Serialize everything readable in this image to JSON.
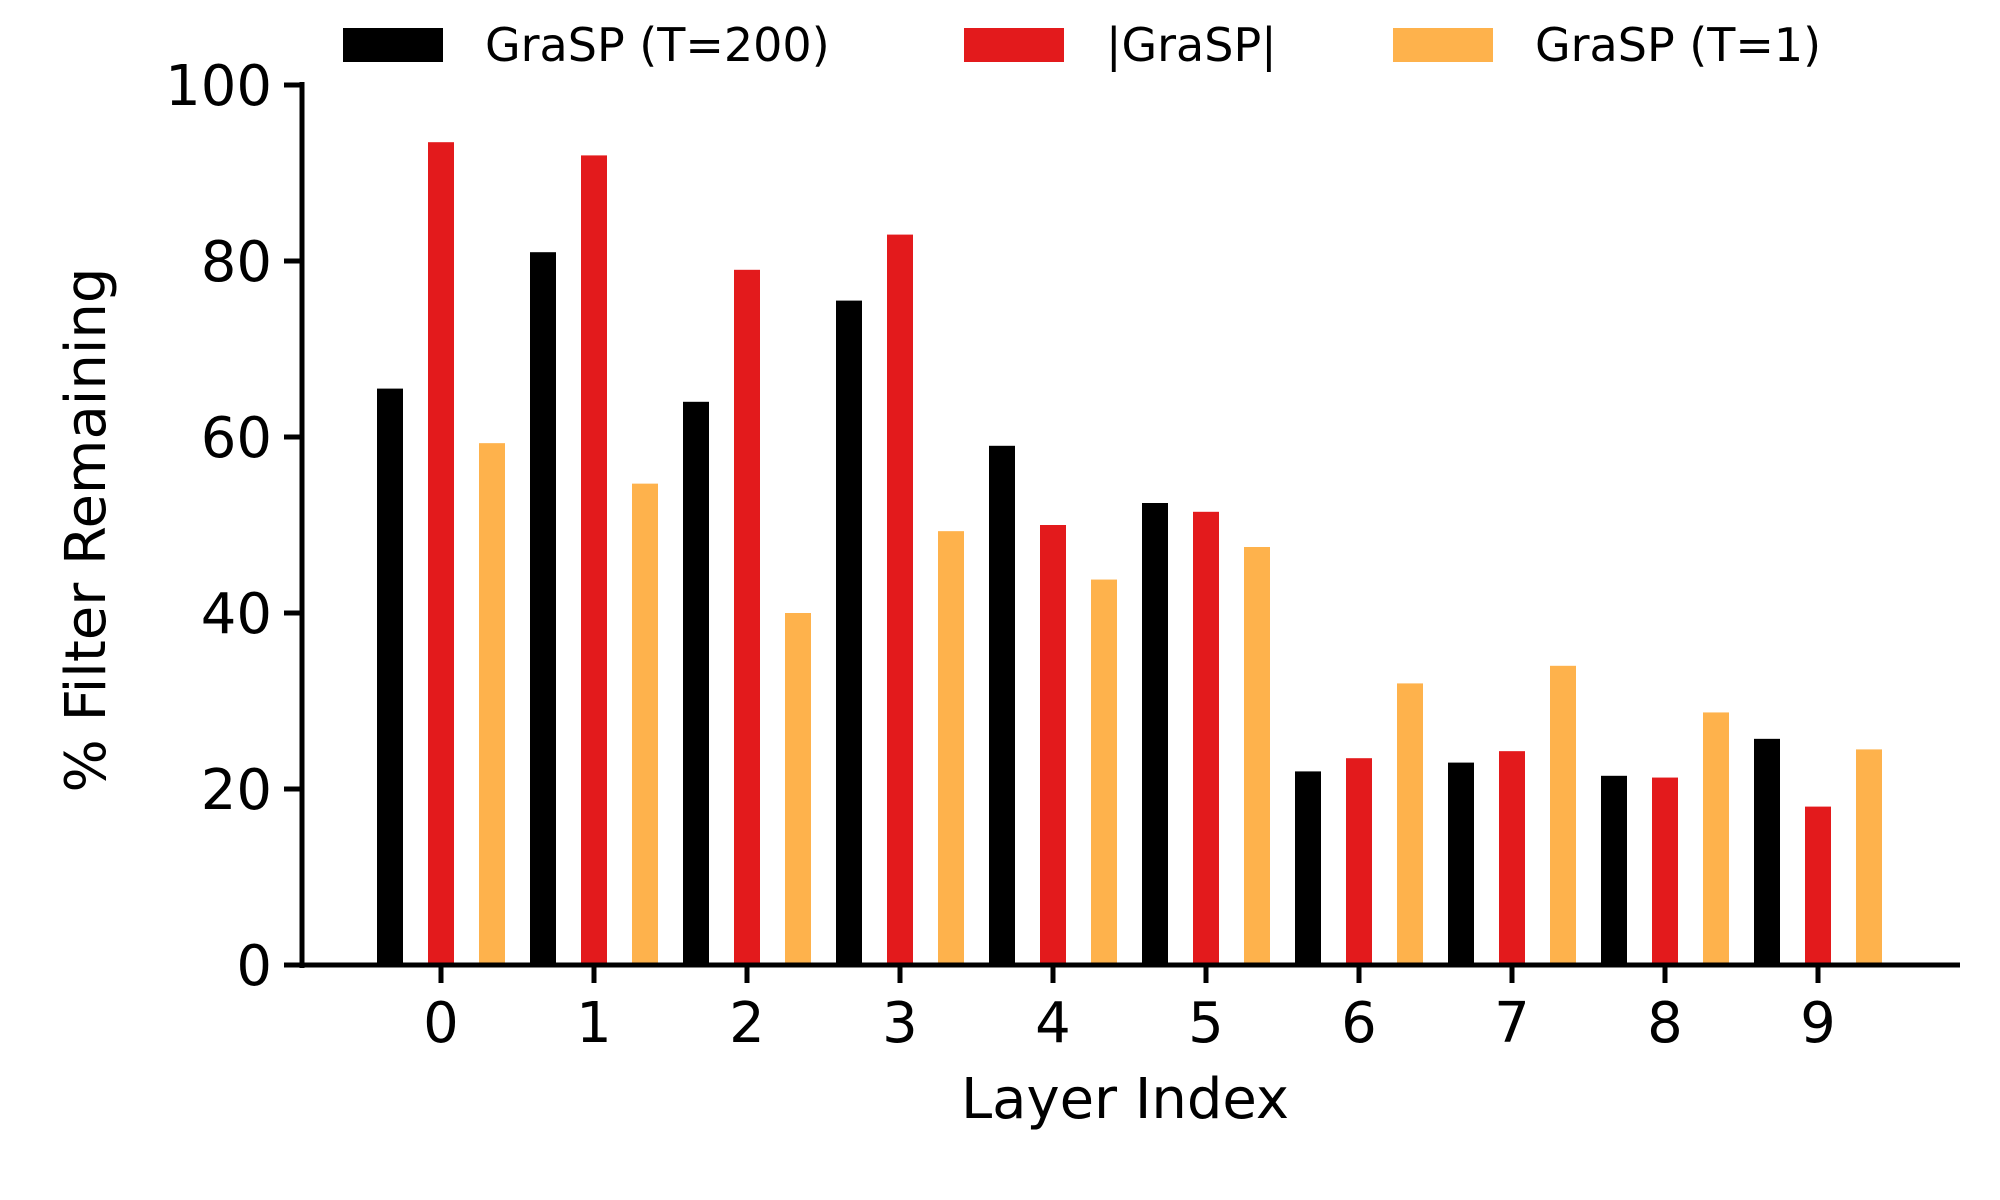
{
  "chart_data": {
    "type": "bar",
    "title": "",
    "xlabel": "Layer Index",
    "ylabel": "% Filter Remaining",
    "categories": [
      "0",
      "1",
      "2",
      "3",
      "4",
      "5",
      "6",
      "7",
      "8",
      "9"
    ],
    "ylim": [
      0,
      100
    ],
    "yticks": [
      "0",
      "20",
      "40",
      "60",
      "80",
      "100"
    ],
    "grid": false,
    "legend_position": "top",
    "series": [
      {
        "name": "GraSP (T=200)",
        "color": "#000000",
        "values": [
          65.5,
          81.0,
          64.0,
          75.5,
          59.0,
          52.5,
          22.0,
          23.0,
          21.5,
          25.7
        ]
      },
      {
        "name": "|GraSP|",
        "color": "#e31a1c",
        "values": [
          93.5,
          92.0,
          79.0,
          83.0,
          50.0,
          51.5,
          23.5,
          24.3,
          21.3,
          18.0
        ]
      },
      {
        "name": "GraSP (T=1)",
        "color": "#feb24c",
        "values": [
          59.3,
          54.7,
          40.0,
          49.3,
          43.8,
          47.5,
          32.0,
          34.0,
          28.7,
          24.5
        ]
      }
    ]
  }
}
